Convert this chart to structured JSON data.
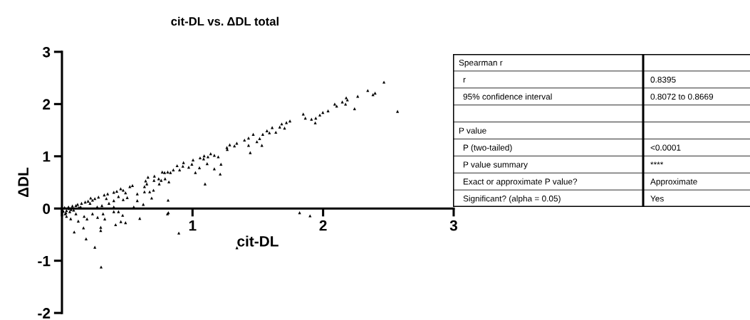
{
  "chart_data": {
    "type": "scatter",
    "title": "cit-DL vs. ΔDL total",
    "xlabel": "cit-DL",
    "ylabel": "ΔDL",
    "xlim": [
      0,
      3
    ],
    "xticks": [
      {
        "value": 0,
        "label": null
      },
      1,
      2,
      3
    ],
    "ylim": [
      -2,
      3
    ],
    "yticks": [
      -2,
      -1,
      0,
      1,
      2,
      3
    ],
    "marker": "triangle",
    "grid": false,
    "annotations": [
      "Spearman r",
      "r",
      "0.8395",
      "95% confidence interval",
      "0.8072 to 0.8669",
      "P value",
      "P (two-tailed)",
      "<0.0001",
      "P value summary",
      "****",
      "Exact or approximate P value?",
      "Approximate",
      "Significant? (alpha = 0.05)",
      "Yes"
    ],
    "series": [
      {
        "color": "#000000",
        "x": [
          0.067,
          0.094,
          0.125,
          0.165,
          0.185,
          0.192,
          0.252,
          0.273,
          0.297,
          0.297,
          0.328,
          0.315,
          0.411,
          0.451,
          0.487,
          0.465,
          0.596,
          0.808,
          0.895,
          0.035,
          0.025,
          0.107,
          0.17,
          0.234,
          0.397,
          0.433,
          0.3,
          1.34,
          0.815,
          1.82,
          1.9,
          0.107,
          0.178,
          0.252,
          0.324,
          0.397,
          0.469,
          0.54,
          0.397,
          0.469,
          0.5,
          0.577,
          0.36,
          0.306,
          0.215,
          0.143,
          0.07,
          0.035,
          0.053,
          0.55,
          0.397,
          0.27,
          0.234,
          0.34,
          0.433,
          0.487,
          0.577,
          1.746,
          1.719,
          1.683,
          1.668,
          1.705,
          1.61,
          1.638,
          1.57,
          1.538,
          1.589,
          1.514,
          1.493,
          1.465,
          1.429,
          1.398,
          1.429,
          1.531,
          1.442,
          1.339,
          1.321,
          1.285,
          1.263,
          1.266,
          1.197,
          1.167,
          1.139,
          1.118,
          1.089,
          1.058,
          1.085,
          1.218,
          1.112,
          1.167,
          1.212,
          1.053,
          1.022,
          1.004,
          0.995,
          0.971,
          0.931,
          0.926,
          0.901,
          0.882,
          0.853,
          0.831,
          0.81,
          0.786,
          0.768,
          0.819,
          0.79,
          0.76,
          0.741,
          0.745,
          0.708,
          0.659,
          0.705,
          0.641,
          0.65,
          0.632,
          0.701,
          0.672,
          0.632,
          0.687,
          0.813,
          1.096,
          0.623,
          2.466,
          2.342,
          2.398,
          2.382,
          2.265,
          2.177,
          2.186,
          2.147,
          2.172,
          2.089,
          2.104,
          2.241,
          2.038,
          1.998,
          1.975,
          1.944,
          1.911,
          1.94,
          1.864,
          1.848,
          2.57,
          0.01,
          0.02,
          0.03,
          0.05,
          0.06,
          0.08,
          0.09,
          0.12,
          0.13,
          0.15,
          0.2,
          0.22,
          0.28,
          0.35,
          0.42,
          0.45,
          0.52
        ],
        "values": [
          -0.196,
          -0.45,
          -0.24,
          -0.37,
          -0.58,
          -0.2,
          -0.74,
          -0.17,
          -0.36,
          -0.42,
          -0.2,
          -0.1,
          -0.31,
          -0.25,
          -0.27,
          -0.13,
          -0.19,
          -0.1,
          -0.47,
          -0.15,
          -0.1,
          -0.1,
          -0.15,
          -0.1,
          -0.06,
          -0.06,
          -1.12,
          -0.75,
          -0.08,
          -0.08,
          -0.14,
          0.057,
          0.123,
          0.19,
          0.26,
          0.31,
          0.35,
          0.44,
          0.15,
          0.17,
          0.21,
          0.15,
          0.1,
          0.055,
          0.1,
          0.03,
          -0.02,
          -0.04,
          0.0,
          0.03,
          0.03,
          0.03,
          0.16,
          0.19,
          0.23,
          0.3,
          0.28,
          1.675,
          1.645,
          1.62,
          1.56,
          1.54,
          1.55,
          1.46,
          1.49,
          1.42,
          1.45,
          1.34,
          1.28,
          1.42,
          1.35,
          1.31,
          1.21,
          1.21,
          1.07,
          1.25,
          1.2,
          1.22,
          1.17,
          1.13,
          0.99,
          1.02,
          1.05,
          0.99,
          1.01,
          0.97,
          0.95,
          0.85,
          0.86,
          0.76,
          0.66,
          0.78,
          0.69,
          0.93,
          0.85,
          0.79,
          0.88,
          0.81,
          0.74,
          0.82,
          0.74,
          0.69,
          0.7,
          0.69,
          0.7,
          0.51,
          0.57,
          0.54,
          0.57,
          0.47,
          0.62,
          0.6,
          0.54,
          0.53,
          0.47,
          0.42,
          0.35,
          0.32,
          0.32,
          0.2,
          0.16,
          0.47,
          0.08,
          2.42,
          2.26,
          2.21,
          2.18,
          2.15,
          2.12,
          2.08,
          2.04,
          2.0,
          2.0,
          1.96,
          1.91,
          1.87,
          1.84,
          1.79,
          1.73,
          1.71,
          1.64,
          1.73,
          1.81,
          1.86,
          -0.05,
          0.02,
          -0.08,
          0.03,
          -0.06,
          0.05,
          -0.03,
          0.08,
          0.02,
          0.1,
          0.14,
          0.2,
          0.22,
          0.28,
          0.33,
          0.38,
          0.42
        ]
      }
    ]
  }
}
